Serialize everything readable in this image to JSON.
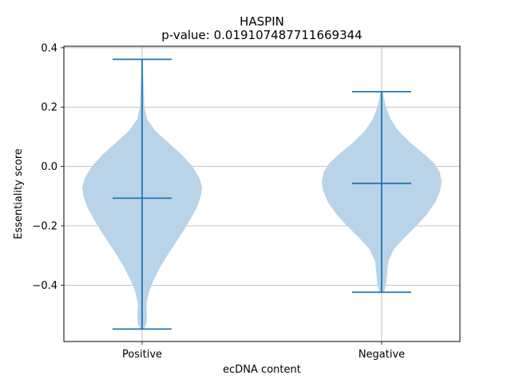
{
  "chart_data": {
    "type": "violin",
    "title": "HASPIN",
    "subtitle": "p-value: 0.019107487711669344",
    "xlabel": "ecDNA content",
    "ylabel": "Essentiality score",
    "categories": [
      "Positive",
      "Negative"
    ],
    "ylim": [
      -0.59,
      0.405
    ],
    "yticks": [
      -0.4,
      -0.2,
      0.0,
      0.2,
      0.4
    ],
    "ytick_labels": [
      "−0.4",
      "−0.2",
      "0.0",
      "0.2",
      "0.4"
    ],
    "grid": true,
    "colors": {
      "body": "#b9d3e8",
      "lines": "#1f77b4",
      "grid": "#b0b0b0"
    },
    "violins": [
      {
        "category": "Positive",
        "min": -0.548,
        "median": -0.107,
        "max": 0.361,
        "profile": [
          [
            -0.548,
            0.03
          ],
          [
            -0.53,
            0.07
          ],
          [
            -0.5,
            0.08
          ],
          [
            -0.46,
            0.07
          ],
          [
            -0.42,
            0.12
          ],
          [
            -0.38,
            0.2
          ],
          [
            -0.34,
            0.3
          ],
          [
            -0.3,
            0.42
          ],
          [
            -0.26,
            0.55
          ],
          [
            -0.22,
            0.68
          ],
          [
            -0.18,
            0.8
          ],
          [
            -0.14,
            0.91
          ],
          [
            -0.1,
            0.98
          ],
          [
            -0.07,
            1.0
          ],
          [
            -0.04,
            0.96
          ],
          [
            0.0,
            0.84
          ],
          [
            0.04,
            0.66
          ],
          [
            0.08,
            0.44
          ],
          [
            0.12,
            0.22
          ],
          [
            0.16,
            0.08
          ],
          [
            0.2,
            0.04
          ],
          [
            0.25,
            0.03
          ],
          [
            0.3,
            0.02
          ],
          [
            0.361,
            0.01
          ]
        ]
      },
      {
        "category": "Negative",
        "min": -0.424,
        "median": -0.057,
        "max": 0.252,
        "profile": [
          [
            -0.424,
            0.04
          ],
          [
            -0.4,
            0.07
          ],
          [
            -0.36,
            0.09
          ],
          [
            -0.32,
            0.11
          ],
          [
            -0.28,
            0.2
          ],
          [
            -0.24,
            0.38
          ],
          [
            -0.2,
            0.58
          ],
          [
            -0.16,
            0.76
          ],
          [
            -0.12,
            0.9
          ],
          [
            -0.08,
            0.98
          ],
          [
            -0.05,
            1.0
          ],
          [
            -0.02,
            0.97
          ],
          [
            0.01,
            0.88
          ],
          [
            0.04,
            0.72
          ],
          [
            0.08,
            0.48
          ],
          [
            0.12,
            0.28
          ],
          [
            0.16,
            0.15
          ],
          [
            0.2,
            0.07
          ],
          [
            0.23,
            0.04
          ],
          [
            0.252,
            0.02
          ]
        ]
      }
    ]
  }
}
